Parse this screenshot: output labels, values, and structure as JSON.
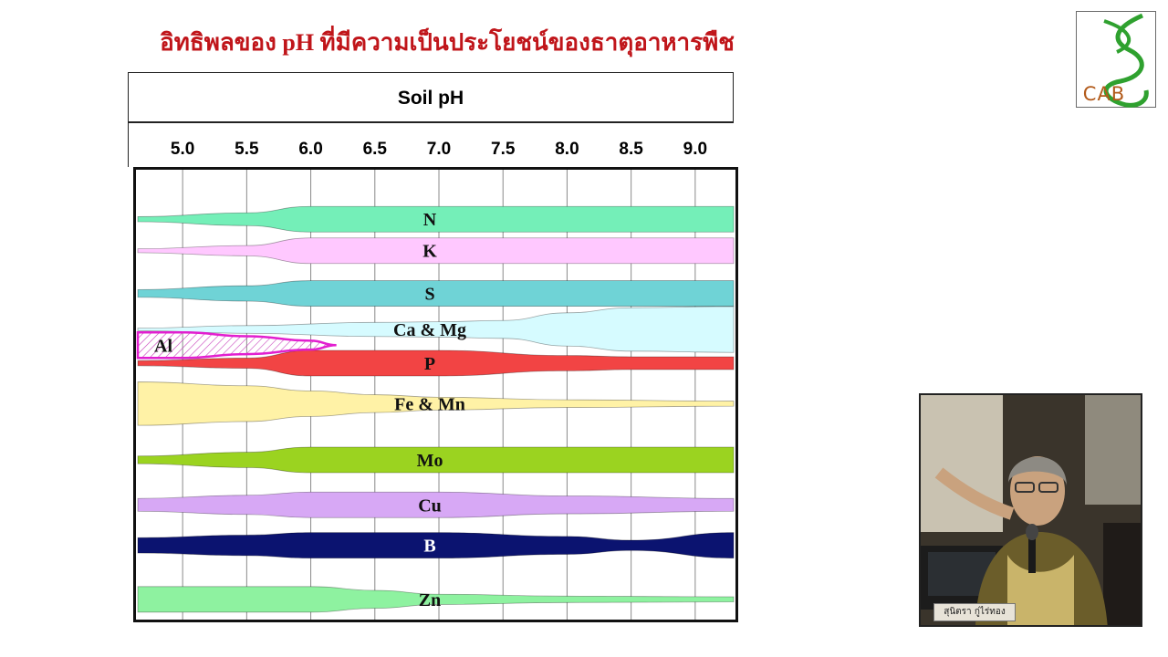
{
  "slide": {
    "title": "อิทธิพลของ pH  ที่มีความเป็นประโยชน์ของธาตุอาหารพืช",
    "logo_text": "CAB"
  },
  "chart_data": {
    "type": "area",
    "xlabel": "Soil  pH",
    "xlim": [
      4.65,
      9.3
    ],
    "ticks": [
      "5.0",
      "5.5",
      "6.0",
      "6.5",
      "7.0",
      "7.5",
      "8.0",
      "8.5",
      "9.0"
    ],
    "series": [
      {
        "name": "N",
        "color": "#74efb8",
        "center": 0.11,
        "widths": [
          [
            4.65,
            0.2
          ],
          [
            5.5,
            0.5
          ],
          [
            6.0,
            1.0
          ],
          [
            9.3,
            1.0
          ]
        ]
      },
      {
        "name": "K",
        "color": "#ffc8ff",
        "center": 0.18,
        "widths": [
          [
            4.65,
            0.15
          ],
          [
            5.5,
            0.4
          ],
          [
            6.0,
            1.0
          ],
          [
            9.3,
            1.0
          ]
        ]
      },
      {
        "name": "S",
        "color": "#6fd3d6",
        "center": 0.275,
        "widths": [
          [
            4.65,
            0.3
          ],
          [
            5.5,
            0.6
          ],
          [
            6.0,
            1.0
          ],
          [
            9.3,
            1.0
          ]
        ]
      },
      {
        "name": "Ca & Mg",
        "color": "#d6fbff",
        "center": 0.355,
        "widths": [
          [
            4.65,
            0.1
          ],
          [
            5.5,
            0.3
          ],
          [
            6.5,
            0.55
          ],
          [
            7.0,
            0.6
          ],
          [
            7.5,
            0.7
          ],
          [
            8.0,
            1.3
          ],
          [
            8.5,
            1.7
          ],
          [
            9.3,
            1.8
          ]
        ]
      },
      {
        "name": "P",
        "color": "#f24444",
        "center": 0.43,
        "widths": [
          [
            4.65,
            0.2
          ],
          [
            5.5,
            0.4
          ],
          [
            6.0,
            1.0
          ],
          [
            7.0,
            1.0
          ],
          [
            8.0,
            0.6
          ],
          [
            8.5,
            0.5
          ],
          [
            9.3,
            0.5
          ]
        ]
      },
      {
        "name": "Fe & Mn",
        "color": "#fff2a6",
        "center": 0.52,
        "widths": [
          [
            4.65,
            1.7
          ],
          [
            5.5,
            1.4
          ],
          [
            6.0,
            1.0
          ],
          [
            6.5,
            0.7
          ],
          [
            7.0,
            0.5
          ],
          [
            8.0,
            0.3
          ],
          [
            9.3,
            0.2
          ]
        ]
      },
      {
        "name": "Mo",
        "color": "#9bd320",
        "center": 0.645,
        "widths": [
          [
            4.65,
            0.3
          ],
          [
            5.5,
            0.6
          ],
          [
            6.0,
            1.0
          ],
          [
            9.3,
            1.0
          ]
        ]
      },
      {
        "name": "Cu",
        "color": "#d7a8f5",
        "center": 0.745,
        "widths": [
          [
            4.65,
            0.5
          ],
          [
            5.5,
            0.75
          ],
          [
            6.0,
            1.0
          ],
          [
            7.0,
            1.0
          ],
          [
            8.0,
            0.7
          ],
          [
            9.3,
            0.5
          ]
        ]
      },
      {
        "name": "B",
        "color": "#0b1370",
        "center": 0.835,
        "widths": [
          [
            4.65,
            0.6
          ],
          [
            5.5,
            0.8
          ],
          [
            6.0,
            1.0
          ],
          [
            7.0,
            1.0
          ],
          [
            8.0,
            0.7
          ],
          [
            8.5,
            0.4
          ],
          [
            9.3,
            1.0
          ]
        ]
      },
      {
        "name": "Zn",
        "color": "#8ef2a0",
        "center": 0.955,
        "widths": [
          [
            4.65,
            1.0
          ],
          [
            6.0,
            1.0
          ],
          [
            6.5,
            0.7
          ],
          [
            7.0,
            0.4
          ],
          [
            8.0,
            0.25
          ],
          [
            9.3,
            0.2
          ]
        ]
      },
      {
        "name": "Al",
        "color": "#e21fd0",
        "center": 0.39,
        "widths": [
          [
            4.65,
            1.0
          ],
          [
            5.0,
            1.0
          ],
          [
            5.5,
            0.7
          ],
          [
            6.0,
            0.35
          ],
          [
            6.2,
            0.0
          ]
        ]
      }
    ],
    "grid": true
  },
  "video": {
    "name_tag": "สุนิตรา กู่ไร่ทอง"
  }
}
